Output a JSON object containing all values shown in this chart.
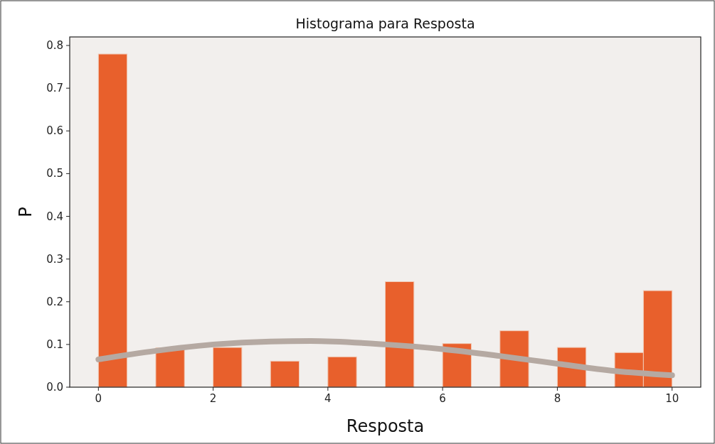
{
  "chart_data": {
    "type": "histogram",
    "title": "Histograma para Resposta",
    "xlabel": "Resposta",
    "ylabel": "P",
    "bins": [
      0,
      0.5,
      1,
      1.5,
      2,
      2.5,
      3,
      3.5,
      4,
      4.5,
      5,
      5.5,
      6,
      6.5,
      7,
      7.5,
      8,
      8.5,
      9,
      9.5,
      10
    ],
    "series": [
      {
        "color": "#e8602c",
        "values": [
          0.78,
          0,
          0.092,
          0,
          0.093,
          0,
          0.061,
          0,
          0.071,
          0,
          0.247,
          0,
          0.102,
          0,
          0.132,
          0,
          0.093,
          0,
          0.081,
          0.226
        ]
      },
      {
        "type": "line",
        "color": "#b5a9a2",
        "x": [
          0,
          1,
          2,
          3,
          3.7,
          5,
          6,
          7,
          8,
          9,
          10
        ],
        "values": [
          0.065,
          0.085,
          0.1,
          0.107,
          0.108,
          0.1,
          0.089,
          0.073,
          0.055,
          0.038,
          0.028
        ]
      }
    ],
    "xlim": [
      -0.5,
      10.5
    ],
    "ylim": [
      0,
      0.82
    ],
    "xticks": [
      0,
      2,
      4,
      6,
      8,
      10
    ],
    "yticks": [
      {
        "value": 0,
        "label": "0.0"
      },
      0.1,
      0.2,
      0.3,
      0.4,
      0.5,
      0.6,
      0.7,
      0.8
    ],
    "grid": false
  }
}
